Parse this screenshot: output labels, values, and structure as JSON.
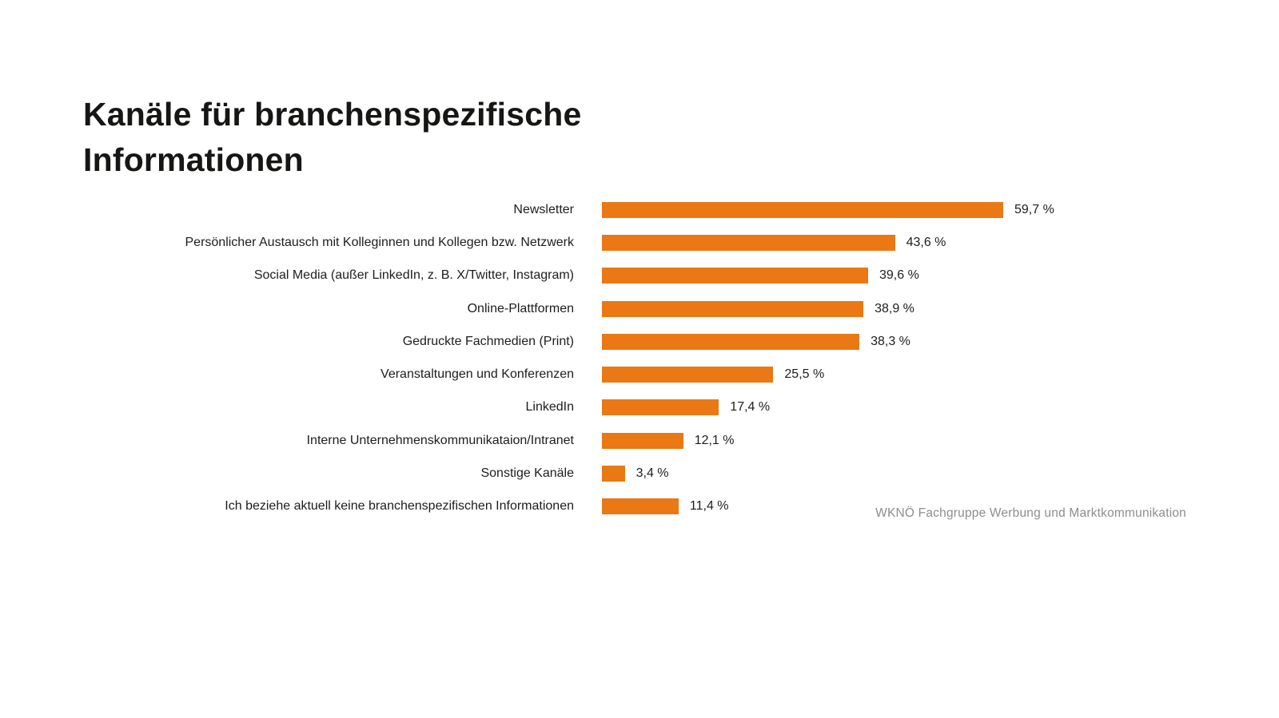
{
  "title": "Kanäle für branchenspezifische Informationen",
  "source": "WKNÖ Fachgruppe Werbung und Marktkommunikation",
  "chart_data": {
    "type": "bar",
    "orientation": "horizontal",
    "title": "Kanäle für branchenspezifische Informationen",
    "categories": [
      "Newsletter",
      "Persönlicher Austausch mit Kolleginnen und Kollegen bzw. Netzwerk",
      "Social Media (außer LinkedIn, z. B. X/Twitter, Instagram)",
      "Online-Plattformen",
      "Gedruckte Fachmedien (Print)",
      "Veranstaltungen und Konferenzen",
      "LinkedIn",
      "Interne Unternehmenskommunikataion/Intranet",
      "Sonstige Kanäle",
      "Ich beziehe aktuell keine branchenspezifischen Informationen"
    ],
    "values": [
      59.7,
      43.6,
      39.6,
      38.9,
      38.3,
      25.5,
      17.4,
      12.1,
      3.4,
      11.4
    ],
    "value_labels": [
      "59,7 %",
      "43,6 %",
      "39,6 %",
      "38,9 %",
      "38,3 %",
      "25,5 %",
      "17,4 %",
      "12,1 %",
      "3,4 %",
      "11,4 %"
    ],
    "xlabel": "",
    "ylabel": "",
    "xlim": [
      0,
      60
    ],
    "grid": false,
    "legend": false,
    "bar_color": "#E97815",
    "label_color": "#1D1D1B",
    "title_color": "#161615",
    "source_color": "#8D8D8D",
    "background_color": "#FFFFFF"
  }
}
